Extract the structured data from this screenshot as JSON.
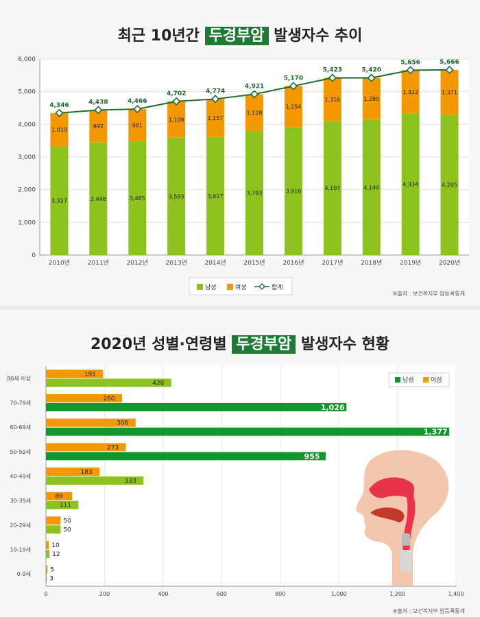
{
  "colors": {
    "male_light": "#8dc21f",
    "male_dark": "#12962f",
    "female": "#f39800",
    "total_line": "#1e6b2e",
    "title_highlight": "#1e7a34"
  },
  "chart_data": [
    {
      "type": "bar",
      "stacked": true,
      "title_prefix": "최근 10년간",
      "title_highlight": "두경부암",
      "title_suffix": "발생자수 추이",
      "categories": [
        "2010년",
        "2011년",
        "2012년",
        "2013년",
        "2014년",
        "2015년",
        "2016년",
        "2017년",
        "2018년",
        "2019년",
        "2020년"
      ],
      "series": [
        {
          "name": "남성",
          "values": [
            3327,
            3446,
            3485,
            3593,
            3617,
            3793,
            3916,
            4107,
            4140,
            4334,
            4295
          ]
        },
        {
          "name": "여성",
          "values": [
            1019,
            992,
            981,
            1109,
            1157,
            1128,
            1254,
            1316,
            1280,
            1322,
            1371
          ]
        },
        {
          "name": "합계",
          "type": "line",
          "values": [
            4346,
            4438,
            4466,
            4702,
            4774,
            4921,
            5170,
            5423,
            5420,
            5656,
            5666
          ]
        }
      ],
      "ylim": [
        0,
        6000
      ],
      "yticks": [
        "0",
        "1,000",
        "2,000",
        "3,000",
        "4,000",
        "5,000",
        "6,000"
      ],
      "grid": true,
      "legend_position": "bottom-center",
      "source": "※출처 : 보건복지부 암등록통계"
    },
    {
      "type": "bar",
      "orientation": "horizontal",
      "title_prefix": "2020년 성별·연령별",
      "title_highlight": "두경부암",
      "title_suffix": "발생자수 현황",
      "categories": [
        "80세 이상",
        "70-79세",
        "60-69세",
        "50-59세",
        "40-49세",
        "30-39세",
        "20-29세",
        "10-19세",
        "0-9세"
      ],
      "series": [
        {
          "name": "여성",
          "values": [
            195,
            260,
            306,
            273,
            183,
            89,
            50,
            10,
            5
          ]
        },
        {
          "name": "남성",
          "values": [
            428,
            1026,
            1377,
            955,
            333,
            111,
            50,
            12,
            3
          ]
        }
      ],
      "xlim": [
        0,
        1400
      ],
      "xticks": [
        "0",
        "200",
        "400",
        "600",
        "800",
        "1,000",
        "1,200",
        "1,400"
      ],
      "grid": true,
      "legend_position": "top-right",
      "source": "※출처 : 보건복지부 암등록통계"
    }
  ]
}
